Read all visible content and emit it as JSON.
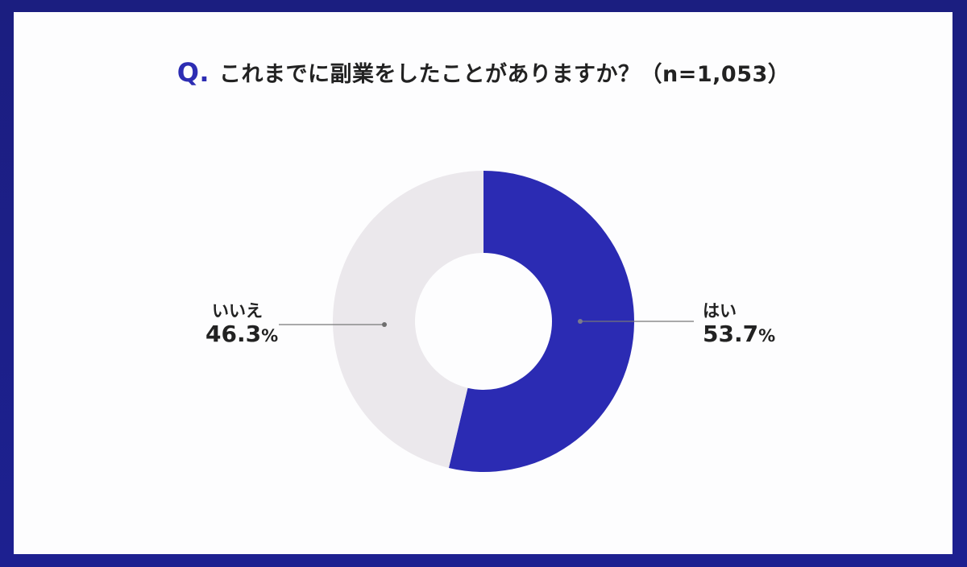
{
  "header": {
    "q_marker": "Q",
    "q_dot": ".",
    "question": "これまでに副業をしたことがありますか？（n=1,053）"
  },
  "colors": {
    "frame": "#1c1f86",
    "card": "#fdfdfe",
    "yes": "#2b2bb3",
    "no": "#ebe8ec",
    "leader": "#777777",
    "text": "#222222",
    "q_accent": "#2d2db3"
  },
  "labels": {
    "no": {
      "name": "いいえ",
      "value": "46.3",
      "unit": "%"
    },
    "yes": {
      "name": "はい",
      "value": "53.7",
      "unit": "%"
    }
  },
  "chart_data": {
    "type": "pie",
    "variant": "donut",
    "title": "これまでに副業をしたことがありますか？（n=1,053）",
    "n": 1053,
    "categories": [
      "はい",
      "いいえ"
    ],
    "values": [
      53.7,
      46.3
    ],
    "unit": "%",
    "colors": [
      "#2b2bb3",
      "#ebe8ec"
    ],
    "start_angle": "12 o'clock, clockwise",
    "legend": "none (direct labels with leader lines)"
  }
}
